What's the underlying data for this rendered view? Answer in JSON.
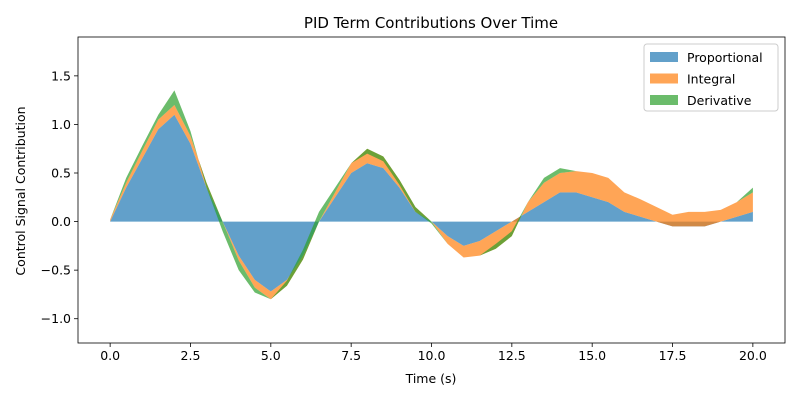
{
  "chart_data": {
    "type": "area",
    "title": "PID Term Contributions Over Time",
    "xlabel": "Time (s)",
    "ylabel": "Control Signal Contribution",
    "xlim": [
      -1.0,
      21.0
    ],
    "ylim": [
      -1.25,
      1.9
    ],
    "xticks": [
      0.0,
      2.5,
      5.0,
      7.5,
      10.0,
      12.5,
      15.0,
      17.5,
      20.0
    ],
    "xtick_labels": [
      "0.0",
      "2.5",
      "5.0",
      "7.5",
      "10.0",
      "12.5",
      "15.0",
      "17.5",
      "20.0"
    ],
    "yticks": [
      -1.0,
      -0.5,
      0.0,
      0.5,
      1.0,
      1.5
    ],
    "ytick_labels": [
      "−1.0",
      "−0.5",
      "0.0",
      "0.5",
      "1.0",
      "1.5"
    ],
    "legend_position": "top-right",
    "grid": false,
    "x": [
      0.0,
      0.5,
      1.0,
      1.5,
      2.0,
      2.5,
      3.0,
      3.5,
      4.0,
      4.5,
      5.0,
      5.5,
      6.0,
      6.5,
      7.0,
      7.5,
      8.0,
      8.5,
      9.0,
      9.5,
      10.0,
      10.5,
      11.0,
      11.5,
      12.0,
      12.5,
      13.0,
      13.5,
      14.0,
      14.5,
      15.0,
      15.5,
      16.0,
      16.5,
      17.0,
      17.5,
      18.0,
      18.5,
      19.0,
      19.5,
      20.0
    ],
    "series": [
      {
        "name": "Proportional",
        "color": "#1f77b4",
        "values": [
          0.0,
          0.35,
          0.65,
          0.95,
          1.1,
          0.8,
          0.35,
          0.0,
          -0.35,
          -0.6,
          -0.72,
          -0.6,
          -0.35,
          0.0,
          0.25,
          0.5,
          0.6,
          0.55,
          0.35,
          0.1,
          0.0,
          -0.15,
          -0.25,
          -0.2,
          -0.1,
          0.0,
          0.1,
          0.2,
          0.3,
          0.3,
          0.25,
          0.2,
          0.1,
          0.05,
          0.0,
          -0.05,
          -0.05,
          -0.05,
          0.0,
          0.05,
          0.1
        ]
      },
      {
        "name": "Integral",
        "color": "#ff7f0e",
        "values": [
          0.02,
          0.05,
          0.08,
          0.1,
          0.1,
          0.08,
          0.05,
          0.0,
          -0.05,
          -0.08,
          -0.08,
          -0.06,
          -0.04,
          0.0,
          0.05,
          0.1,
          0.15,
          0.12,
          0.08,
          0.05,
          0.0,
          -0.08,
          -0.12,
          -0.15,
          -0.18,
          -0.15,
          0.1,
          0.2,
          0.2,
          0.22,
          0.25,
          0.25,
          0.2,
          0.18,
          0.15,
          0.12,
          0.15,
          0.15,
          0.12,
          0.15,
          0.2
        ]
      },
      {
        "name": "Derivative",
        "color": "#2ca02c",
        "values": [
          0.0,
          0.05,
          0.05,
          0.05,
          0.15,
          0.05,
          -0.05,
          -0.1,
          -0.1,
          -0.05,
          0.0,
          0.05,
          0.1,
          0.1,
          0.05,
          0.0,
          -0.05,
          -0.05,
          -0.05,
          -0.05,
          -0.02,
          0.0,
          0.0,
          0.0,
          0.05,
          0.05,
          0.0,
          0.05,
          0.05,
          0.0,
          0.0,
          0.0,
          0.0,
          0.0,
          0.0,
          0.0,
          0.0,
          0.0,
          0.0,
          0.0,
          0.05
        ]
      }
    ]
  }
}
